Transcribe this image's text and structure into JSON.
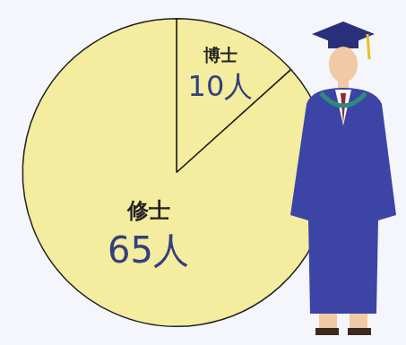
{
  "chart_data": {
    "type": "pie",
    "categories": [
      "博士",
      "修士"
    ],
    "values": [
      10,
      65
    ],
    "value_labels": [
      "10人",
      "65人"
    ],
    "color": "#f4ec9e",
    "data_labels": true
  }
}
